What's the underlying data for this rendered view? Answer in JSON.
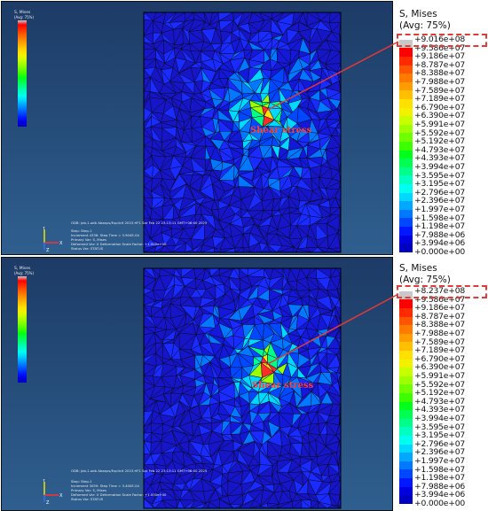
{
  "panels": [
    {
      "id": "top",
      "mini_legend": {
        "title": "S, Mises",
        "avg": "(Avg: 75%)"
      },
      "info_lines": [
        "ODB: Job-1.odb    Abaqus/Explicit 2023.HF1    Sat Feb 22 23:13:11 GMT+08:00 2025"
      ],
      "step_lines": [
        "Step: Step-1",
        "Increment    4336: Step Time =    3.904E-04",
        "Primary Var: S, Mises",
        "Deformed Var: U   Deformation Scale Factor: +1.000e+00",
        "Status Var: STATUS"
      ],
      "annotation": "Shear stress",
      "legend": {
        "title": "S, Mises",
        "avg": "(Avg: 75%)",
        "labels": [
          "+9.016e+08",
          "+9.586e+07",
          "+9.186e+07",
          "+8.787e+07",
          "+8.388e+07",
          "+7.988e+07",
          "+7.589e+07",
          "+7.189e+07",
          "+6.790e+07",
          "+6.390e+07",
          "+5.991e+07",
          "+5.592e+07",
          "+5.192e+07",
          "+4.793e+07",
          "+4.393e+07",
          "+3.994e+07",
          "+3.595e+07",
          "+3.195e+07",
          "+2.796e+07",
          "+2.396e+07",
          "+1.997e+07",
          "+1.598e+07",
          "+1.198e+07",
          "+7.988e+06",
          "+3.994e+06",
          "+0.000e+00"
        ]
      }
    },
    {
      "id": "bottom",
      "mini_legend": {
        "title": "S, Mises",
        "avg": "(Avg: 75%)"
      },
      "info_lines": [
        "ODB: Job-1.odb    Abaqus/Explicit 2023.HF1    Sat Feb 22 23:13:11 GMT+08:00 2025"
      ],
      "step_lines": [
        "Step: Step-1",
        "Increment    3059: Step Time =    3.400E-04",
        "Primary Var: S, Mises",
        "Deformed Var: U   Deformation Scale Factor: +1.000e+00",
        "Status Var: STATUS"
      ],
      "annotation": "Shear stress",
      "legend": {
        "title": "S, Mises",
        "avg": "(Avg: 75%)",
        "labels": [
          "+8.237e+08",
          "+9.586e+07",
          "+9.186e+07",
          "+8.787e+07",
          "+8.388e+07",
          "+7.988e+07",
          "+7.589e+07",
          "+7.189e+07",
          "+6.790e+07",
          "+6.390e+07",
          "+5.991e+07",
          "+5.592e+07",
          "+5.192e+07",
          "+4.793e+07",
          "+4.393e+07",
          "+3.994e+07",
          "+3.595e+07",
          "+3.195e+07",
          "+2.796e+07",
          "+2.396e+07",
          "+1.997e+07",
          "+1.598e+07",
          "+1.198e+07",
          "+7.988e+06",
          "+3.994e+06",
          "+0.000e+00"
        ]
      }
    }
  ],
  "colors": {
    "scale": [
      "#c8c8c8",
      "#ff0000",
      "#ff2a00",
      "#ff5500",
      "#ff7a00",
      "#ff9d00",
      "#ffc000",
      "#ffe000",
      "#f2f200",
      "#c8ff00",
      "#9dff00",
      "#6fff00",
      "#3dff00",
      "#00ff1a",
      "#00ff52",
      "#00ff8a",
      "#00ffc0",
      "#00fff0",
      "#00d8ff",
      "#00a8ff",
      "#0078ff",
      "#0048ff",
      "#0018ff",
      "#0000e0",
      "#0000c0"
    ],
    "annotation": "#e53935"
  },
  "axis": {
    "x": "X",
    "y": "Y",
    "z": "Z"
  }
}
